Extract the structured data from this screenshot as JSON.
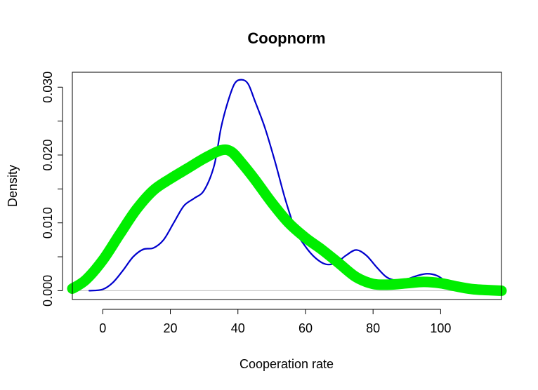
{
  "chart_data": {
    "type": "line",
    "title": "Coopnorm",
    "xlabel": "Cooperation rate",
    "ylabel": "Density",
    "xlim": [
      -9,
      118
    ],
    "ylim": [
      -0.0013,
      0.0322
    ],
    "x_ticks": [
      0,
      20,
      40,
      60,
      80,
      100
    ],
    "x_tick_labels": [
      "0",
      "20",
      "40",
      "60",
      "80",
      "100"
    ],
    "y_ticks": [
      0.0,
      0.005,
      0.01,
      0.015,
      0.02,
      0.025,
      0.03
    ],
    "y_tick_labels": [
      "0.000",
      "",
      "0.010",
      "",
      "0.020",
      "",
      "0.030"
    ],
    "baseline": {
      "y": 0,
      "color": "#bebebe"
    },
    "grid": false,
    "series": [
      {
        "color": "#0000cd",
        "style": "thin",
        "x": [
          -4,
          0,
          3,
          6,
          9,
          12,
          15,
          18,
          21,
          24,
          27,
          30,
          33,
          35,
          37,
          39,
          41,
          43,
          45,
          48,
          51,
          54,
          57,
          60,
          63,
          66,
          69,
          72,
          75,
          78,
          81,
          84,
          87,
          90,
          93,
          96,
          99,
          102,
          105
        ],
        "y": [
          0.0,
          0.0002,
          0.0012,
          0.003,
          0.005,
          0.0061,
          0.0063,
          0.0075,
          0.01,
          0.0125,
          0.0136,
          0.0148,
          0.0185,
          0.024,
          0.0278,
          0.0305,
          0.0311,
          0.0305,
          0.028,
          0.024,
          0.019,
          0.0135,
          0.009,
          0.0065,
          0.0048,
          0.0039,
          0.0041,
          0.0052,
          0.006,
          0.0052,
          0.0035,
          0.002,
          0.0015,
          0.0017,
          0.0022,
          0.0025,
          0.0022,
          0.0012,
          0.0003
        ]
      },
      {
        "color": "#00ee00",
        "style": "thick",
        "x": [
          -9,
          -5,
          0,
          5,
          10,
          15,
          20,
          25,
          30,
          35,
          38,
          41,
          45,
          50,
          55,
          60,
          65,
          70,
          75,
          80,
          85,
          90,
          95,
          100,
          105,
          110,
          118
        ],
        "y": [
          0.0003,
          0.0016,
          0.0045,
          0.0083,
          0.012,
          0.0148,
          0.0165,
          0.018,
          0.0195,
          0.0207,
          0.0205,
          0.0189,
          0.0164,
          0.013,
          0.01,
          0.0078,
          0.006,
          0.004,
          0.002,
          0.001,
          0.0009,
          0.0011,
          0.0013,
          0.0011,
          0.0006,
          0.0002,
          0.0
        ]
      }
    ]
  }
}
